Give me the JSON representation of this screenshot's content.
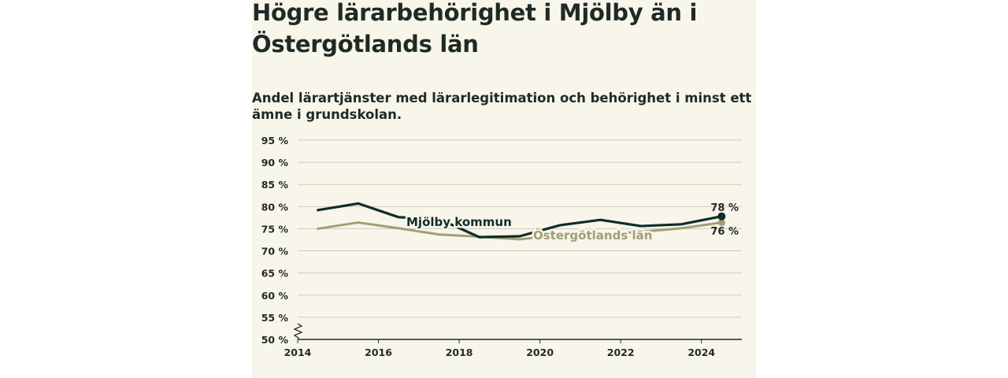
{
  "chart_data": {
    "type": "line",
    "title": "Högre lärarbehörighet i Mjölby än i Östergötlands län",
    "subtitle": "Andel lärartjänster med lärarlegitimation och behörighet i minst ett ämne i grundskolan.",
    "xlabel": "",
    "ylabel": "",
    "x": [
      2014.5,
      2015.5,
      2016.5,
      2017.5,
      2018.5,
      2019.5,
      2020.5,
      2021.5,
      2022.5,
      2023.5,
      2024.5
    ],
    "xlim": [
      2014,
      2025
    ],
    "ylim": [
      50,
      95
    ],
    "x_ticks": [
      2014,
      2016,
      2018,
      2020,
      2022,
      2024
    ],
    "x_tick_labels": [
      "2014",
      "2016",
      "2018",
      "2020",
      "2022",
      "2024"
    ],
    "y_ticks": [
      50,
      55,
      60,
      65,
      70,
      75,
      80,
      85,
      90,
      95
    ],
    "y_tick_labels": [
      "50 %",
      "55 %",
      "60 %",
      "65 %",
      "70 %",
      "75 %",
      "80 %",
      "85 %",
      "90 %",
      "95 %"
    ],
    "axis_break": true,
    "grid": true,
    "series": [
      {
        "name": "Mjölby kommun",
        "color": "#0e2e28",
        "values": [
          79.2,
          80.7,
          77.6,
          77.2,
          73.1,
          73.3,
          75.8,
          77.0,
          75.6,
          76.0,
          77.8
        ],
        "end_label": "78 %"
      },
      {
        "name": "Östergötlands län",
        "color": "#a39d76",
        "values": [
          75.0,
          76.4,
          75.1,
          73.7,
          73.2,
          72.6,
          73.6,
          73.8,
          74.3,
          75.1,
          76.4
        ],
        "end_label": "76 %"
      }
    ]
  }
}
